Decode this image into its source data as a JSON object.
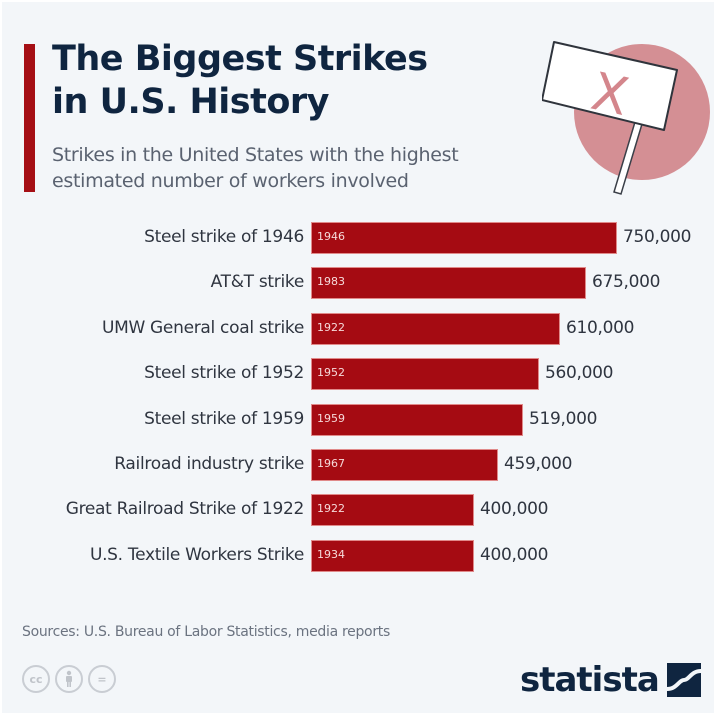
{
  "header": {
    "title_line1": "The Biggest Strikes",
    "title_line2": "in U.S. History",
    "subtitle_line1": "Strikes in the United States with the highest",
    "subtitle_line2": "estimated number of workers involved",
    "illustration_sign_text": "X"
  },
  "colors": {
    "accent": "#a50f15",
    "bar": "#a50b12",
    "title": "#0f2540",
    "background": "#f3f6f9",
    "illustration_circle": "#d48f94"
  },
  "chart_data": {
    "type": "bar",
    "orientation": "horizontal",
    "title": "The Biggest Strikes in U.S. History",
    "subtitle": "Strikes in the United States with the highest estimated number of workers involved",
    "xlabel": "",
    "ylabel": "",
    "xlim": [
      0,
      750000
    ],
    "grid": false,
    "categories": [
      "Steel strike of 1946",
      "AT&T strike",
      "UMW General coal strike",
      "Steel strike of 1952",
      "Steel strike of 1959",
      "Railroad industry strike",
      "Great Railroad Strike of 1922",
      "U.S. Textile Workers Strike"
    ],
    "years": [
      "1946",
      "1983",
      "1922",
      "1952",
      "1959",
      "1967",
      "1922",
      "1934"
    ],
    "values": [
      750000,
      675000,
      610000,
      560000,
      519000,
      459000,
      400000,
      400000
    ],
    "value_labels": [
      "750,000",
      "675,000",
      "610,000",
      "560,000",
      "519,000",
      "459,000",
      "400,000",
      "400,000"
    ]
  },
  "footer": {
    "sources": "Sources: U.S. Bureau of Labor Statistics, media reports",
    "cc_icons": [
      "cc",
      "by",
      "nd"
    ],
    "cc_label": "cc",
    "nd_label": "=",
    "logo_text": "statista"
  }
}
